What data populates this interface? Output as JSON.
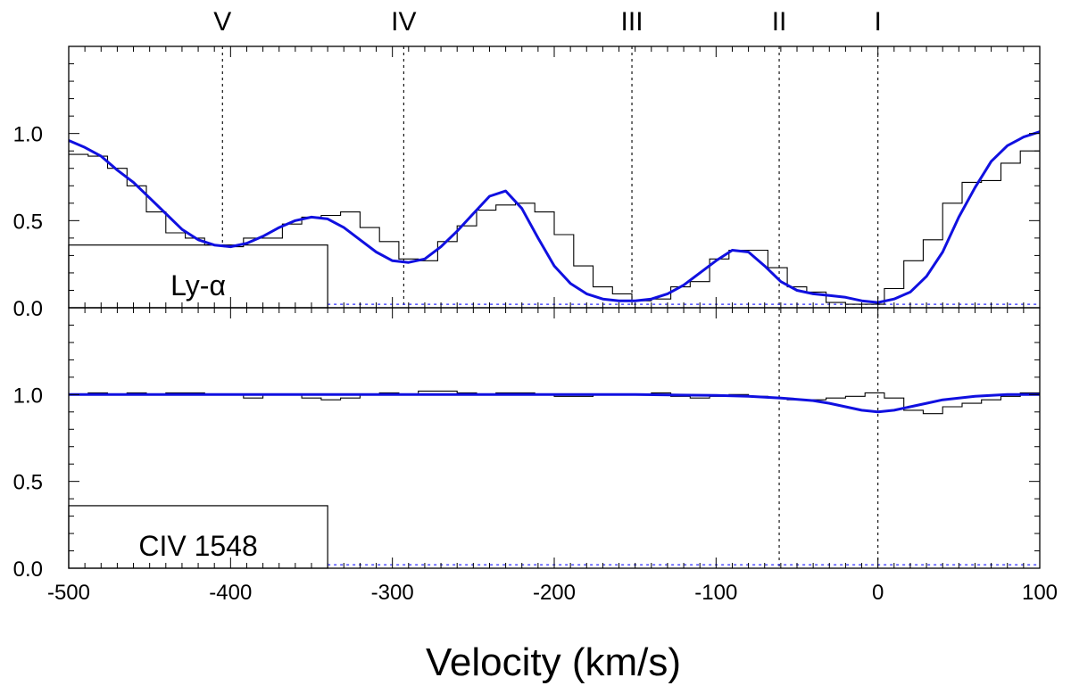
{
  "chart_data": {
    "type": "line",
    "xlabel": "Velocity (km/s)",
    "xlim": [
      -500,
      100
    ],
    "x_ticks": [
      -500,
      -400,
      -300,
      -200,
      -100,
      0,
      100
    ],
    "x_tick_labels": [
      "-500",
      "-400",
      "-300",
      "-200",
      "-100",
      "0",
      "100"
    ],
    "components": [
      {
        "label": "V",
        "velocity": -405
      },
      {
        "label": "IV",
        "velocity": -293
      },
      {
        "label": "III",
        "velocity": -152
      },
      {
        "label": "II",
        "velocity": -61
      },
      {
        "label": "I",
        "velocity": 0
      }
    ],
    "colors": {
      "data": "#000000",
      "model": "#1010e0",
      "zero_line": "#2a2aff",
      "marker": "#000000"
    },
    "panels": [
      {
        "id": "lya",
        "label": "Ly-α",
        "ylim": [
          0,
          1.5
        ],
        "y_ticks": [
          0,
          0.5,
          1.0
        ],
        "y_tick_labels": [
          "0.0",
          "0.5",
          "1.0"
        ],
        "legend_box_until_velocity": -340,
        "legend_box_height_flux": 0.36,
        "dotted_level": 0.02,
        "data_bin_width": 12,
        "data": {
          "x": [
            -500,
            -488,
            -476,
            -464,
            -452,
            -440,
            -428,
            -416,
            -404,
            -392,
            -380,
            -368,
            -356,
            -344,
            -332,
            -320,
            -308,
            -296,
            -284,
            -272,
            -260,
            -248,
            -236,
            -224,
            -212,
            -200,
            -188,
            -176,
            -164,
            -152,
            -140,
            -128,
            -116,
            -104,
            -92,
            -80,
            -68,
            -56,
            -44,
            -32,
            -20,
            -8,
            4,
            16,
            28,
            40,
            52,
            64,
            76,
            88
          ],
          "y": [
            0.88,
            0.87,
            0.8,
            0.7,
            0.55,
            0.43,
            0.4,
            0.36,
            0.35,
            0.4,
            0.4,
            0.48,
            0.52,
            0.53,
            0.55,
            0.46,
            0.38,
            0.28,
            0.27,
            0.38,
            0.47,
            0.56,
            0.59,
            0.6,
            0.55,
            0.42,
            0.24,
            0.12,
            0.08,
            0.04,
            0.05,
            0.12,
            0.15,
            0.28,
            0.33,
            0.33,
            0.23,
            0.12,
            0.09,
            0.03,
            0.02,
            0.02,
            0.11,
            0.27,
            0.39,
            0.6,
            0.72,
            0.73,
            0.83,
            0.9
          ]
        },
        "model": {
          "x": [
            -500,
            -490,
            -480,
            -470,
            -460,
            -450,
            -440,
            -430,
            -420,
            -410,
            -400,
            -390,
            -380,
            -370,
            -360,
            -350,
            -340,
            -330,
            -320,
            -310,
            -300,
            -290,
            -280,
            -270,
            -260,
            -250,
            -240,
            -230,
            -220,
            -210,
            -200,
            -190,
            -180,
            -170,
            -160,
            -150,
            -140,
            -130,
            -120,
            -110,
            -100,
            -90,
            -80,
            -70,
            -60,
            -50,
            -40,
            -30,
            -20,
            -10,
            0,
            10,
            20,
            30,
            40,
            50,
            60,
            70,
            80,
            90,
            100
          ],
          "y": [
            0.96,
            0.92,
            0.87,
            0.79,
            0.72,
            0.63,
            0.54,
            0.45,
            0.39,
            0.36,
            0.35,
            0.37,
            0.41,
            0.46,
            0.5,
            0.52,
            0.51,
            0.46,
            0.39,
            0.32,
            0.27,
            0.26,
            0.28,
            0.35,
            0.44,
            0.54,
            0.64,
            0.67,
            0.57,
            0.4,
            0.24,
            0.14,
            0.08,
            0.05,
            0.04,
            0.04,
            0.05,
            0.08,
            0.13,
            0.2,
            0.27,
            0.33,
            0.32,
            0.24,
            0.15,
            0.1,
            0.08,
            0.07,
            0.06,
            0.04,
            0.03,
            0.05,
            0.09,
            0.18,
            0.32,
            0.52,
            0.69,
            0.84,
            0.93,
            0.98,
            1.01
          ]
        }
      },
      {
        "id": "civ",
        "label": "CIV 1548",
        "ylim": [
          0,
          1.5
        ],
        "y_ticks": [
          0,
          0.5,
          1.0
        ],
        "y_tick_labels": [
          "0.0",
          "0.5",
          "1.0"
        ],
        "legend_box_until_velocity": -340,
        "legend_box_height_flux": 0.36,
        "dotted_level": 0.02,
        "data_bin_width": 12,
        "data": {
          "x": [
            -500,
            -488,
            -476,
            -464,
            -452,
            -440,
            -428,
            -416,
            -404,
            -392,
            -380,
            -368,
            -356,
            -344,
            -332,
            -320,
            -308,
            -296,
            -284,
            -272,
            -260,
            -248,
            -236,
            -224,
            -212,
            -200,
            -188,
            -176,
            -164,
            -152,
            -140,
            -128,
            -116,
            -104,
            -92,
            -80,
            -68,
            -56,
            -44,
            -32,
            -20,
            -8,
            4,
            16,
            28,
            40,
            52,
            64,
            76,
            88
          ],
          "y": [
            1.0,
            1.01,
            1.0,
            1.01,
            1.0,
            1.01,
            1.01,
            1.0,
            1.0,
            0.98,
            1.0,
            1.0,
            0.98,
            0.97,
            0.98,
            1.0,
            1.01,
            1.0,
            1.02,
            1.02,
            1.01,
            1.0,
            1.01,
            1.01,
            1.0,
            0.99,
            0.99,
            1.0,
            1.0,
            1.0,
            1.01,
            0.99,
            0.98,
            0.99,
            1.0,
            0.99,
            0.98,
            0.97,
            0.97,
            0.98,
            0.99,
            1.01,
            0.98,
            0.91,
            0.89,
            0.93,
            0.95,
            0.97,
            0.99,
            1.01
          ]
        },
        "model": {
          "x": [
            -500,
            -450,
            -400,
            -350,
            -300,
            -250,
            -200,
            -150,
            -100,
            -80,
            -60,
            -40,
            -30,
            -20,
            -10,
            0,
            10,
            20,
            30,
            40,
            60,
            80,
            100
          ],
          "y": [
            1.0,
            1.0,
            1.0,
            1.0,
            1.0,
            1.0,
            1.0,
            1.0,
            0.995,
            0.99,
            0.98,
            0.965,
            0.95,
            0.93,
            0.91,
            0.9,
            0.91,
            0.93,
            0.95,
            0.97,
            0.99,
            1.0,
            1.0
          ]
        }
      }
    ]
  }
}
